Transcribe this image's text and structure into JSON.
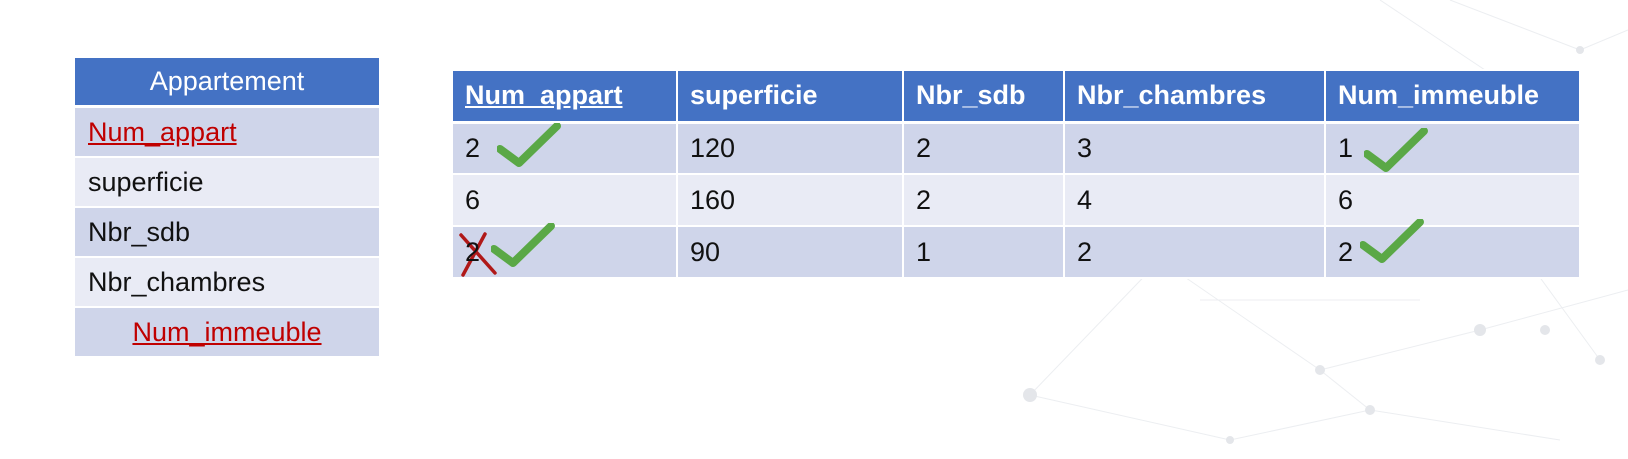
{
  "entity": {
    "title": "Appartement",
    "attributes": [
      {
        "label": "Num_appart",
        "is_key": true
      },
      {
        "label": "superficie",
        "is_key": false
      },
      {
        "label": "Nbr_sdb",
        "is_key": false
      },
      {
        "label": "Nbr_chambres",
        "is_key": false
      },
      {
        "label": "Num_immeuble",
        "is_key": true
      }
    ]
  },
  "table": {
    "headers": [
      "Num_appart",
      "superficie",
      "Nbr_sdb",
      "Nbr_chambres",
      "Num_immeuble"
    ],
    "rows": [
      [
        "2",
        "120",
        "2",
        "3",
        "1"
      ],
      [
        "6",
        "160",
        "2",
        "4",
        "6"
      ],
      [
        "2",
        "90",
        "1",
        "2",
        "2"
      ]
    ]
  },
  "marks": {
    "check_color": "#5aa846",
    "cross_color": "#b01818",
    "row1_num_appart": "check-icon",
    "row1_num_immeuble": "check-icon",
    "row3_num_appart": [
      "cross-icon",
      "check-icon"
    ],
    "row3_num_immeuble": "check-icon"
  },
  "colors": {
    "header_bg": "#4472c4",
    "row_dark": "#cfd5ea",
    "row_light": "#e9ebf5",
    "key_text": "#c00000"
  }
}
